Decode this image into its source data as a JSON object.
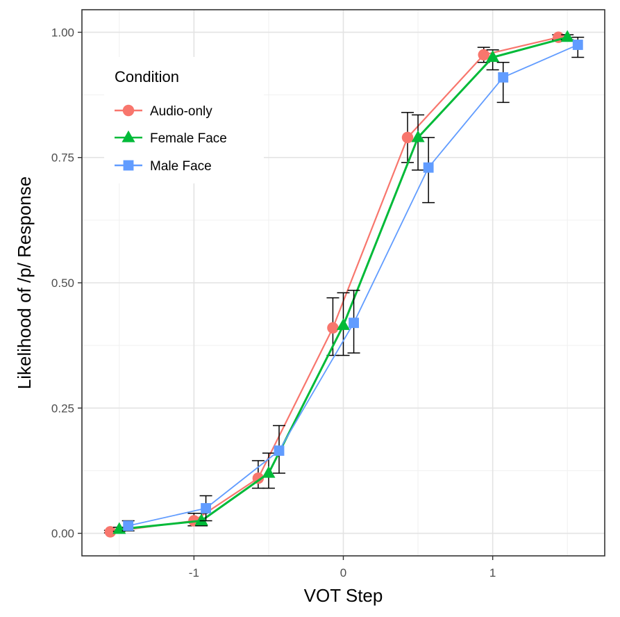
{
  "chart_data": {
    "type": "line",
    "xlabel": "VOT Step",
    "ylabel": "Likelihood of /p/ Response",
    "xlim": [
      -1.75,
      1.75
    ],
    "ylim": [
      -0.045,
      1.045
    ],
    "x_ticks": [
      -1,
      0,
      1
    ],
    "x_tick_labels": [
      "-1",
      "0",
      "1"
    ],
    "y_ticks": [
      0,
      0.25,
      0.5,
      0.75,
      1
    ],
    "y_tick_labels": [
      "0.00",
      "0.25",
      "0.50",
      "0.75",
      "1.00"
    ],
    "grid": true,
    "legend": {
      "title": "Condition",
      "position": "top-left",
      "entries": [
        "Audio-only",
        "Female Face",
        "Male Face"
      ]
    },
    "series": [
      {
        "name": "Audio-only",
        "color": "#F8766D",
        "marker": "circle",
        "x": [
          -1.56,
          -1.0,
          -0.57,
          -0.07,
          0.43,
          0.94,
          1.44
        ],
        "y": [
          0.003,
          0.025,
          0.11,
          0.41,
          0.79,
          0.955,
          0.99
        ],
        "err_low": [
          0.001,
          0.015,
          0.09,
          0.355,
          0.74,
          0.94,
          0.985
        ],
        "err_high": [
          0.006,
          0.04,
          0.145,
          0.47,
          0.84,
          0.97,
          0.995
        ]
      },
      {
        "name": "Female Face",
        "color": "#00BA38",
        "marker": "triangle",
        "x": [
          -1.5,
          -0.95,
          -0.5,
          0.0,
          0.5,
          1.0,
          1.5
        ],
        "y": [
          0.008,
          0.025,
          0.12,
          0.415,
          0.79,
          0.95,
          0.99
        ],
        "err_low": [
          0.004,
          0.015,
          0.09,
          0.355,
          0.725,
          0.925,
          0.985
        ],
        "err_high": [
          0.012,
          0.04,
          0.16,
          0.48,
          0.835,
          0.965,
          0.995
        ]
      },
      {
        "name": "Male Face",
        "color": "#619CFF",
        "marker": "square",
        "x": [
          -1.44,
          -0.92,
          -0.43,
          0.07,
          0.57,
          1.07,
          1.57
        ],
        "y": [
          0.015,
          0.05,
          0.165,
          0.42,
          0.73,
          0.91,
          0.975
        ],
        "err_low": [
          0.005,
          0.025,
          0.12,
          0.36,
          0.66,
          0.86,
          0.95
        ],
        "err_high": [
          0.025,
          0.075,
          0.215,
          0.485,
          0.79,
          0.94,
          0.99
        ]
      }
    ]
  }
}
